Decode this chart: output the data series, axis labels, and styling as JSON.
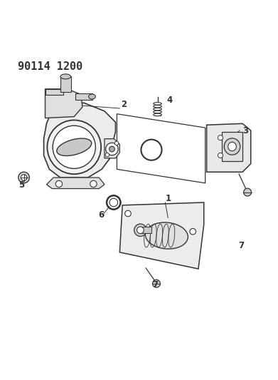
{
  "title": "90114 1200",
  "title_fontsize": 11,
  "title_fontweight": "bold",
  "bg_color": "#ffffff",
  "line_color": "#333333",
  "fig_width": 3.91,
  "fig_height": 5.33,
  "dpi": 100
}
